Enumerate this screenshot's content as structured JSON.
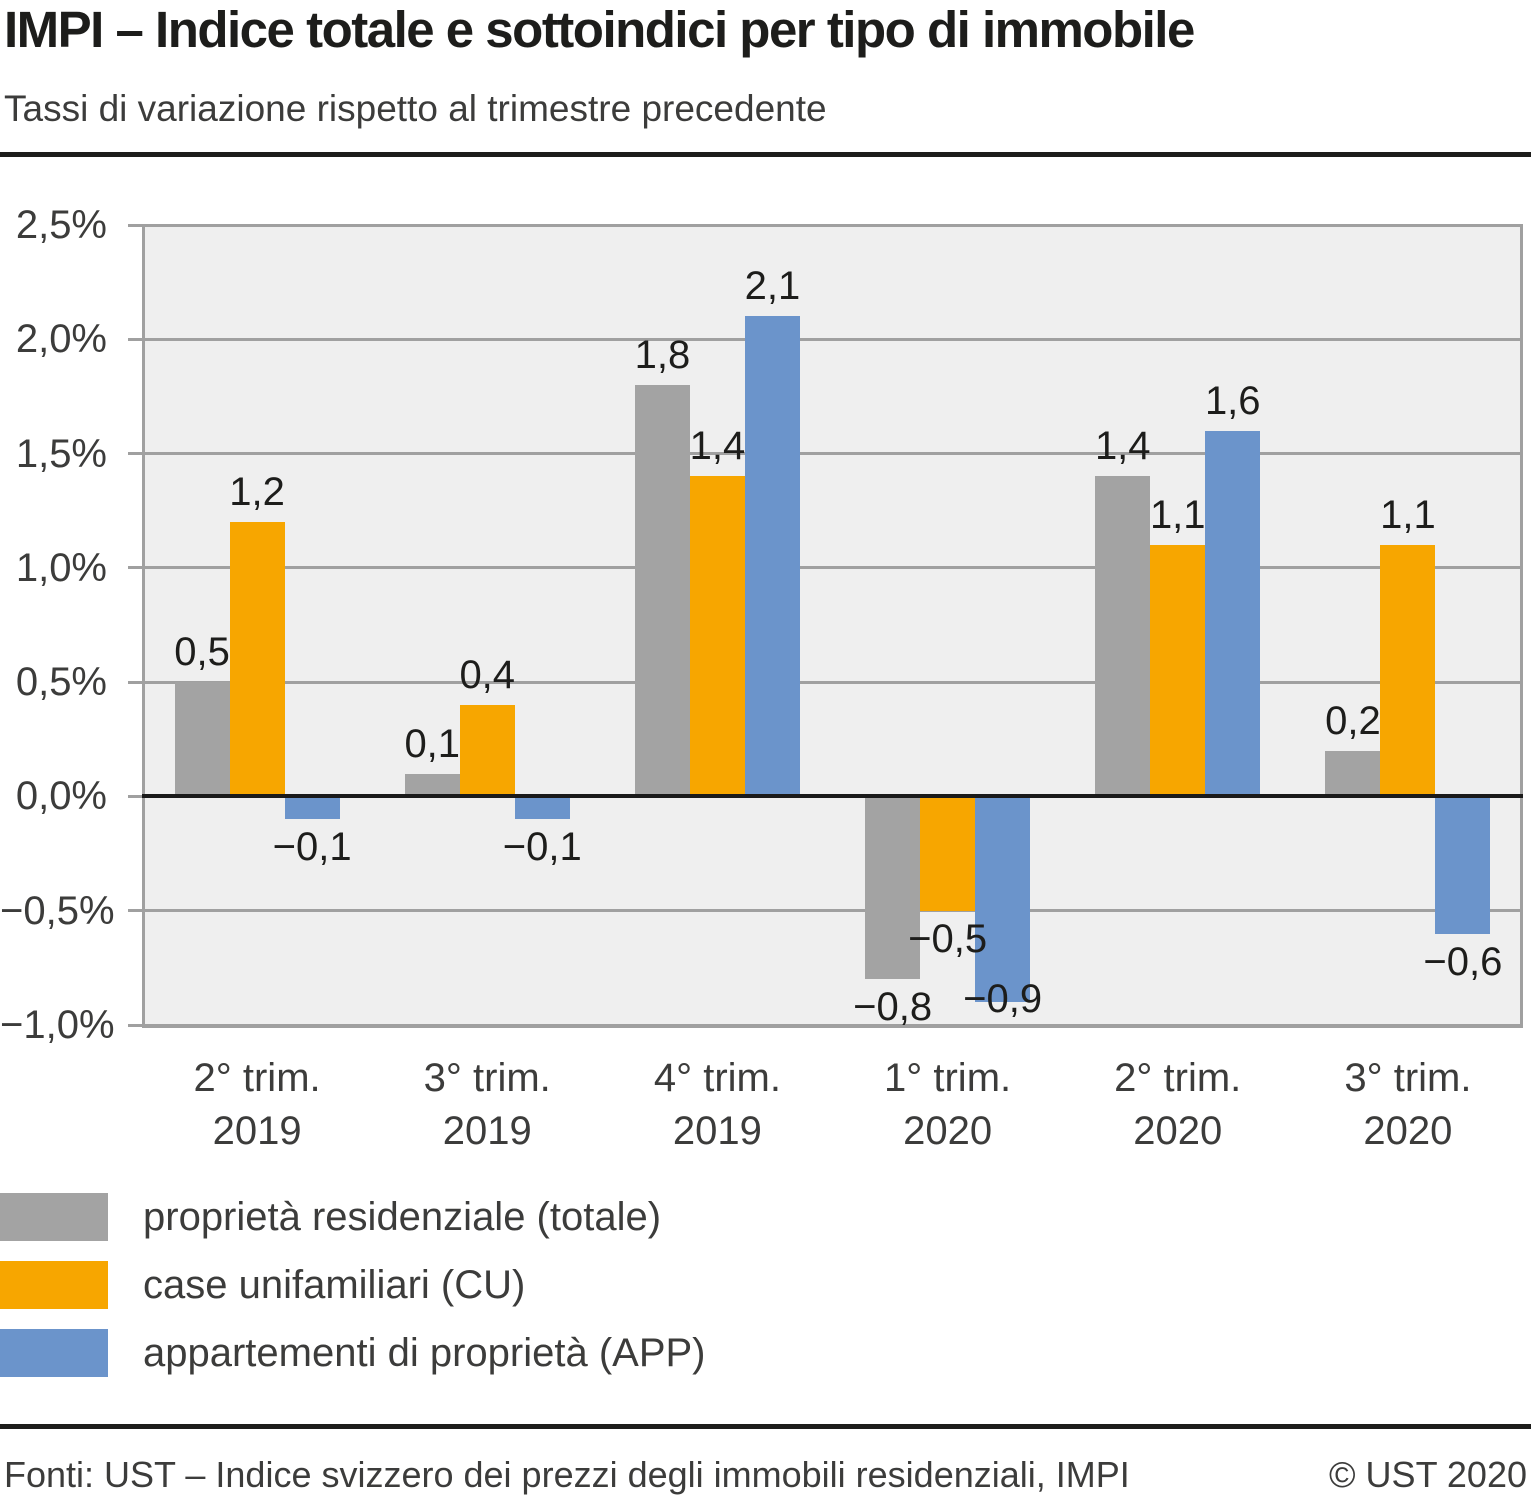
{
  "header": {
    "title": "IMPI – Indice totale e sottoindici per tipo di immobile",
    "subtitle": "Tassi di variazione rispetto al trimestre precedente"
  },
  "chart_data": {
    "type": "bar",
    "title": "IMPI – Indice totale e sottoindici per tipo di immobile",
    "subtitle": "Tassi di variazione rispetto al trimestre precedente",
    "categories": [
      {
        "line1": "2° trim.",
        "line2": "2019"
      },
      {
        "line1": "3° trim.",
        "line2": "2019"
      },
      {
        "line1": "4° trim.",
        "line2": "2019"
      },
      {
        "line1": "1° trim.",
        "line2": "2020"
      },
      {
        "line1": "2° trim.",
        "line2": "2020"
      },
      {
        "line1": "3° trim.",
        "line2": "2020"
      }
    ],
    "series": [
      {
        "name": "proprietà residenziale (totale)",
        "color": "#a3a3a3",
        "values": [
          0.5,
          0.1,
          1.8,
          -0.8,
          1.4,
          0.2
        ],
        "value_labels": [
          "0,5",
          "0,1",
          "1,8",
          "−0,8",
          "1,4",
          "0,2"
        ]
      },
      {
        "name": "case unifamiliari (CU)",
        "color": "#f7a600",
        "values": [
          1.2,
          0.4,
          1.4,
          -0.5,
          1.1,
          1.1
        ],
        "value_labels": [
          "1,2",
          "0,4",
          "1,4",
          "−0,5",
          "1,1",
          "1,1"
        ]
      },
      {
        "name": "appartementi di proprietà (APP)",
        "color": "#6b94cb",
        "values": [
          -0.1,
          -0.1,
          2.1,
          -0.9,
          1.6,
          -0.6
        ],
        "value_labels": [
          "−0,1",
          "−0,1",
          "2,1",
          "−0,9",
          "1,6",
          "−0,6"
        ]
      }
    ],
    "y_axis": {
      "unit": "%",
      "min": -1.0,
      "max": 2.5,
      "step": 0.5,
      "ticks": [
        2.5,
        2.0,
        1.5,
        1.0,
        0.5,
        0.0,
        -0.5,
        -1.0
      ],
      "tick_labels": [
        "2,5%",
        "2,0%",
        "1,5%",
        "1,0%",
        "0,5%",
        "0,0%",
        "−0,5%",
        "−1,0%"
      ]
    },
    "grid": true,
    "legend_position": "bottom-left",
    "plot_background": "#efefef",
    "gridline_color": "#a0a0a0",
    "zero_line_color": "#1a1a1a"
  },
  "footer": {
    "source": "Fonti: UST – Indice svizzero dei prezzi degli immobili residenziali, IMPI",
    "copyright": "© UST 2020"
  }
}
